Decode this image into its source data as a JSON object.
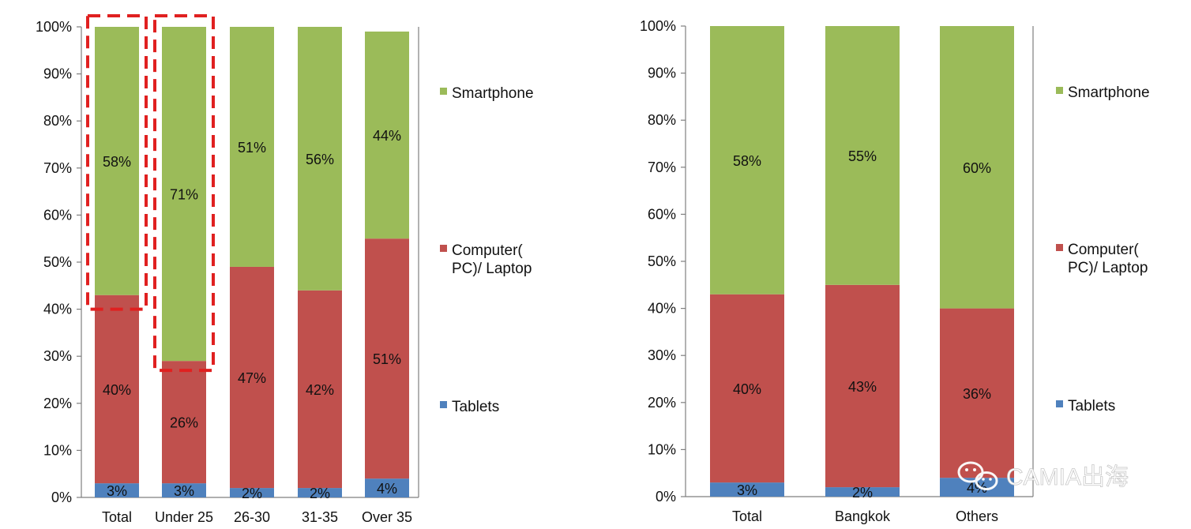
{
  "colors": {
    "smartphone": "#9bbb59",
    "computer": "#c0504d",
    "tablets": "#4f81bd",
    "axis": "#7f7f7f",
    "highlight": "#e02020"
  },
  "chart_data": [
    {
      "type": "bar",
      "stacked": true,
      "title": "",
      "xlabel": "",
      "ylabel": "",
      "ylim": [
        0,
        100
      ],
      "yticks": [
        "0%",
        "10%",
        "20%",
        "30%",
        "40%",
        "50%",
        "60%",
        "70%",
        "80%",
        "90%",
        "100%"
      ],
      "categories": [
        "Total",
        "Under 25",
        "26-30",
        "31-35",
        "Over 35"
      ],
      "series": [
        {
          "name": "Tablets",
          "color_key": "tablets",
          "values": [
            3,
            3,
            2,
            2,
            4
          ],
          "labels": [
            "3%",
            "3%",
            "2%",
            "2%",
            "4%"
          ]
        },
        {
          "name": "Computer(PC)/ Laptop",
          "color_key": "computer",
          "values": [
            40,
            26,
            47,
            42,
            51
          ],
          "labels": [
            "40%",
            "26%",
            "47%",
            "42%",
            "51%"
          ]
        },
        {
          "name": "Smartphone",
          "color_key": "smartphone",
          "values": [
            58,
            71,
            51,
            56,
            44
          ],
          "labels": [
            "58%",
            "71%",
            "51%",
            "56%",
            "44%"
          ]
        }
      ],
      "legend": {
        "placement": "right",
        "entries": [
          {
            "series": "Smartphone",
            "lines": [
              "Smartphone"
            ]
          },
          {
            "series": "Computer(PC)/ Laptop",
            "lines": [
              "Computer(",
              "PC)/ Laptop"
            ]
          },
          {
            "series": "Tablets",
            "lines": [
              "Tablets"
            ]
          }
        ]
      },
      "highlighted_categories": [
        "Total",
        "Under 25"
      ],
      "grid": false
    },
    {
      "type": "bar",
      "stacked": true,
      "title": "",
      "xlabel": "",
      "ylabel": "",
      "ylim": [
        0,
        100
      ],
      "yticks": [
        "0%",
        "10%",
        "20%",
        "30%",
        "40%",
        "50%",
        "60%",
        "70%",
        "80%",
        "90%",
        "100%"
      ],
      "categories": [
        "Total",
        "Bangkok",
        "Others"
      ],
      "series": [
        {
          "name": "Tablets",
          "color_key": "tablets",
          "values": [
            3,
            2,
            4
          ],
          "labels": [
            "3%",
            "2%",
            "4%"
          ]
        },
        {
          "name": "Computer(PC)/ Laptop",
          "color_key": "computer",
          "values": [
            40,
            43,
            36
          ],
          "labels": [
            "40%",
            "43%",
            "36%"
          ]
        },
        {
          "name": "Smartphone",
          "color_key": "smartphone",
          "values": [
            58,
            55,
            60
          ],
          "labels": [
            "58%",
            "55%",
            "60%"
          ]
        }
      ],
      "legend": {
        "placement": "right",
        "entries": [
          {
            "series": "Smartphone",
            "lines": [
              "Smartphone"
            ]
          },
          {
            "series": "Computer(PC)/ Laptop",
            "lines": [
              "Computer(",
              "PC)/ Laptop"
            ]
          },
          {
            "series": "Tablets",
            "lines": [
              "Tablets"
            ]
          }
        ]
      },
      "highlighted_categories": [],
      "grid": false
    }
  ],
  "watermark": {
    "icon": "wechat-icon",
    "text": "CAMIA出海"
  }
}
